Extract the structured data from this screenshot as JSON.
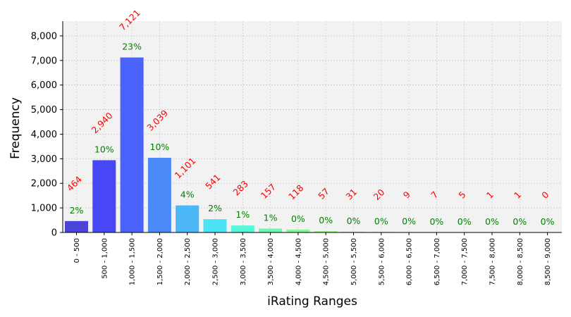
{
  "chart_data": {
    "type": "bar",
    "title": "",
    "xlabel": "iRating Ranges",
    "ylabel": "Frequency",
    "ylim": [
      0,
      8600
    ],
    "yticks": [
      0,
      1000,
      2000,
      3000,
      4000,
      5000,
      6000,
      7000,
      8000
    ],
    "ytick_labels": [
      "0",
      "1,000",
      "2,000",
      "3,000",
      "4,000",
      "5,000",
      "6,000",
      "7,000",
      "8,000"
    ],
    "grid": true,
    "categories": [
      "0 - 500",
      "500 - 1,000",
      "1,000 - 1,500",
      "1,500 - 2,000",
      "2,000 - 2,500",
      "2,500 - 3,000",
      "3,000 - 3,500",
      "3,500 - 4,000",
      "4,000 - 4,500",
      "4,500 - 5,000",
      "5,000 - 5,500",
      "5,500 - 6,000",
      "6,000 - 6,500",
      "6,500 - 7,000",
      "7,000 - 7,500",
      "7,500 - 8,000",
      "8,000 - 8,500",
      "8,500 - 9,000"
    ],
    "values": [
      464,
      2940,
      7121,
      3039,
      1101,
      541,
      283,
      157,
      118,
      57,
      31,
      20,
      9,
      7,
      5,
      1,
      1,
      0
    ],
    "count_labels": [
      "464",
      "2,940",
      "7,121",
      "3,039",
      "1,101",
      "541",
      "283",
      "157",
      "118",
      "57",
      "31",
      "20",
      "9",
      "7",
      "5",
      "1",
      "1",
      "0"
    ],
    "percent_labels": [
      "2%",
      "10%",
      "23%",
      "10%",
      "4%",
      "2%",
      "1%",
      "1%",
      "0%",
      "0%",
      "0%",
      "0%",
      "0%",
      "0%",
      "0%",
      "0%",
      "0%",
      "0%"
    ],
    "bar_colors": [
      "#4a45d6",
      "#4747f5",
      "#4a63fb",
      "#4a8bf9",
      "#4bb7f7",
      "#4ce3f4",
      "#55f7d6",
      "#6cf7b3",
      "#85f79a",
      "#9ff782",
      "#b5f76c",
      "#cdf655",
      "#e2f442",
      "#f2e03a",
      "#f7c535",
      "#f7a630",
      "#f6872c",
      "#f56a28"
    ],
    "count_label_color": "#ff0000",
    "percent_label_color": "#008000",
    "plot_background": "#f2f2f2",
    "grid_color": "#c8c8c8"
  }
}
